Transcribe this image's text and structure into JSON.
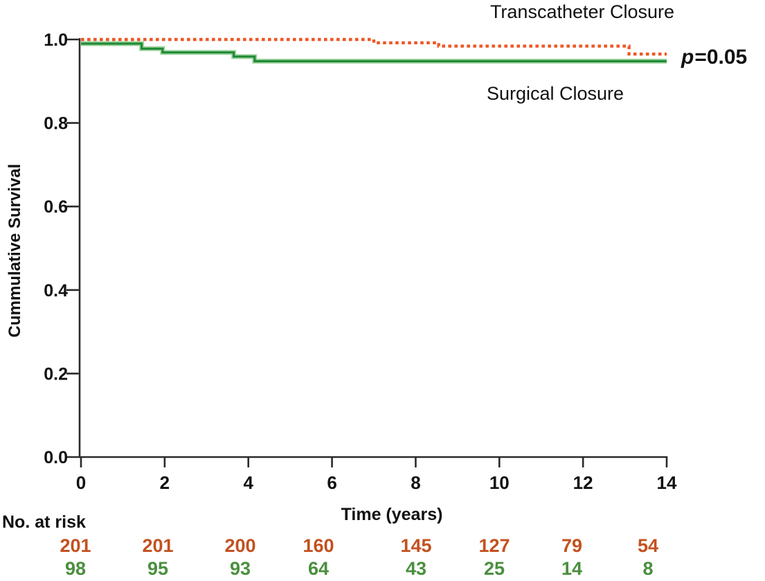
{
  "chart_data": {
    "type": "line",
    "subtype": "kaplan-meier-step",
    "title": "",
    "xlabel": "Time (years)",
    "ylabel": "Cummulative Survival",
    "xlim": [
      0,
      14
    ],
    "ylim": [
      0.0,
      1.0
    ],
    "x_ticks": [
      "0",
      "2",
      "4",
      "6",
      "8",
      "10",
      "12",
      "14"
    ],
    "y_ticks": [
      "0.0",
      "0.2",
      "0.4",
      "0.6",
      "0.8",
      "1.0"
    ],
    "grid": false,
    "legend_position": "in-plot text labels",
    "annotations": [
      {
        "text": "p=0.05",
        "position": "right of curves"
      }
    ],
    "series": [
      {
        "name": "Transcatheter Closure",
        "style": "dotted",
        "color": "#EE5726",
        "points": [
          [
            0,
            1.0
          ],
          [
            7.0,
            1.0
          ],
          [
            7.0,
            0.992
          ],
          [
            8.55,
            0.992
          ],
          [
            8.55,
            0.984
          ],
          [
            13.1,
            0.984
          ],
          [
            13.1,
            0.965
          ],
          [
            14,
            0.965
          ]
        ]
      },
      {
        "name": "Surgical Closure",
        "style": "solid",
        "color": "#238A38",
        "halo_color": "#9FD49F",
        "points": [
          [
            0,
            0.99
          ],
          [
            1.45,
            0.99
          ],
          [
            1.45,
            0.978
          ],
          [
            1.95,
            0.978
          ],
          [
            1.95,
            0.969
          ],
          [
            3.65,
            0.969
          ],
          [
            3.65,
            0.959
          ],
          [
            4.15,
            0.959
          ],
          [
            4.15,
            0.948
          ],
          [
            14,
            0.948
          ]
        ]
      }
    ]
  },
  "labels": {
    "transcatheter": "Transcatheter Closure",
    "surgical": "Surgical Closure",
    "p_italic": "p",
    "p_rest": "=0.05"
  },
  "risk_table": {
    "title": "No. at risk",
    "time_points": [
      0,
      2,
      4,
      6,
      8,
      10,
      12,
      14
    ],
    "rows": [
      {
        "name": "Transcatheter Closure",
        "color": "#C3511F",
        "counts": [
          "201",
          "201",
          "200",
          "160",
          "145",
          "127",
          "79",
          "54"
        ]
      },
      {
        "name": "Surgical Closure",
        "color": "#4A8F3E",
        "counts": [
          "98",
          "95",
          "93",
          "64",
          "43",
          "25",
          "14",
          "8"
        ]
      }
    ]
  },
  "colors": {
    "axis": "#2A2A2A",
    "text": "#111111"
  }
}
